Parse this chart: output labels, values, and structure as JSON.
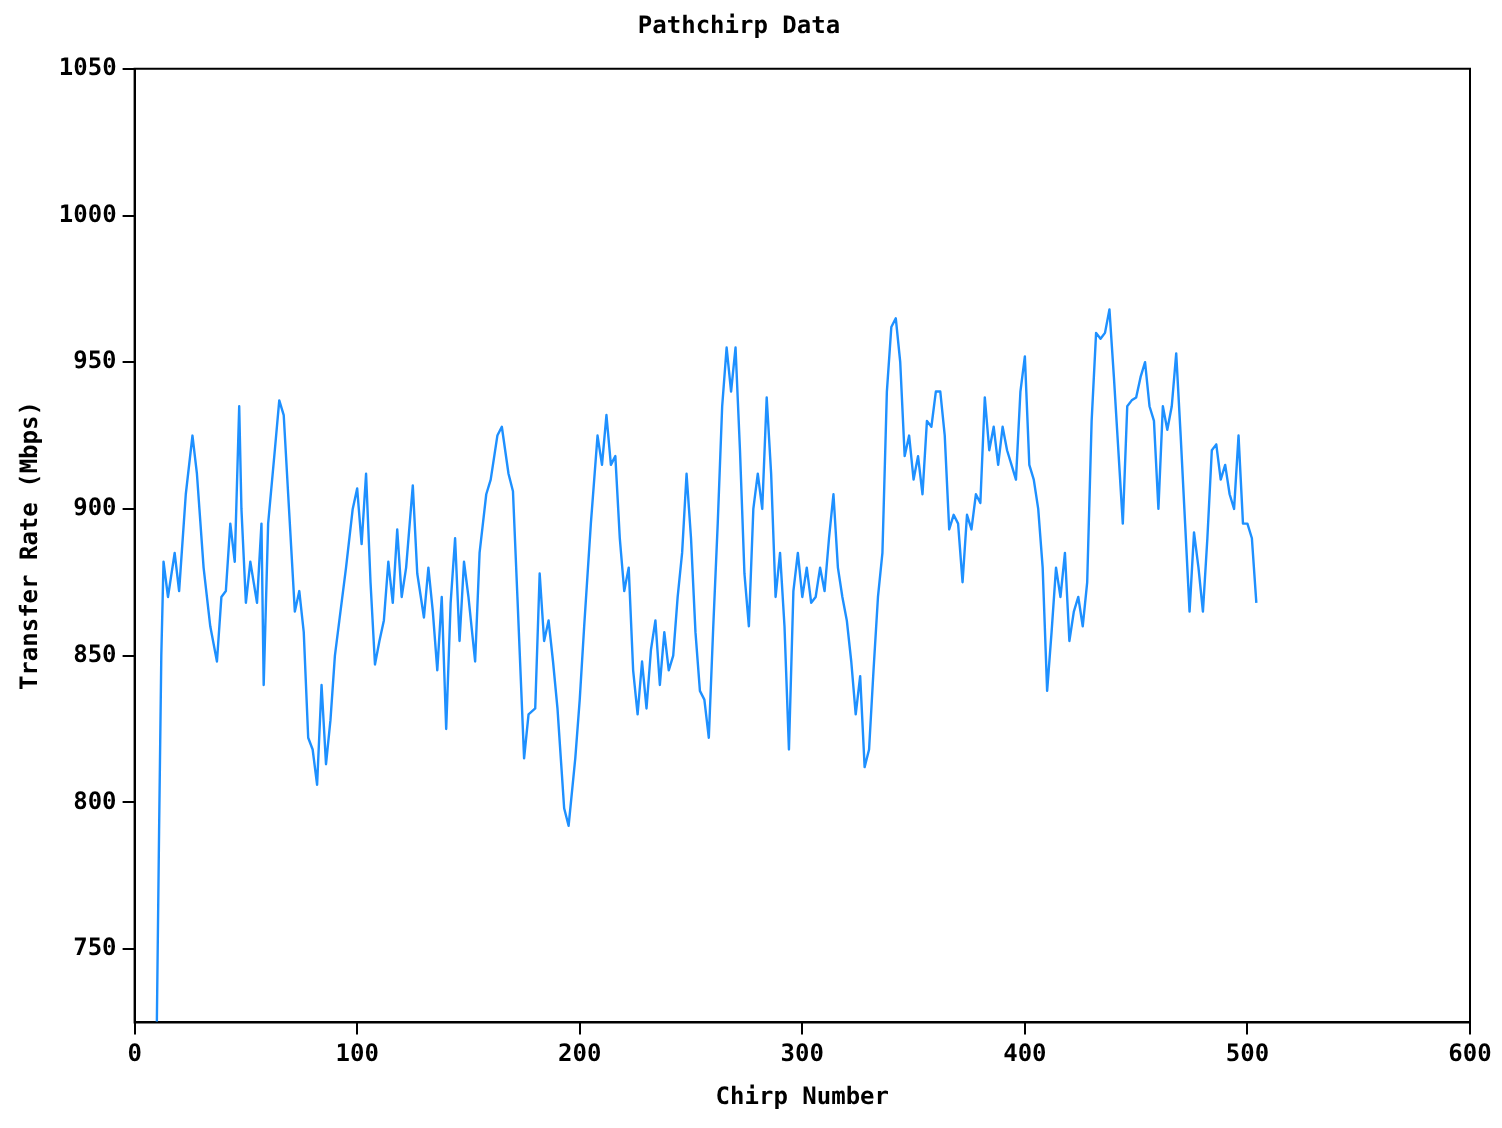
{
  "chart_data": {
    "type": "line",
    "title": "Pathchirp Data",
    "xlabel": "Chirp Number",
    "ylabel": "Transfer Rate (Mbps)",
    "xlim": [
      0,
      600
    ],
    "xticks": [
      0,
      100,
      200,
      300,
      400,
      500,
      600
    ],
    "ylim": [
      725,
      1050
    ],
    "yticks": [
      750,
      800,
      850,
      900,
      950,
      1000,
      1050
    ],
    "grid": false,
    "legend": false,
    "marker": "none",
    "line_style": "solid",
    "series": [
      {
        "color": "#1e90ff",
        "x": [
          10,
          11,
          12,
          13,
          15,
          18,
          20,
          23,
          26,
          28,
          31,
          34,
          37,
          39,
          41,
          43,
          45,
          47,
          48,
          50,
          52,
          55,
          57,
          58,
          60,
          63,
          65,
          67,
          69,
          72,
          74,
          76,
          78,
          80,
          82,
          84,
          86,
          88,
          90,
          92,
          95,
          98,
          100,
          102,
          104,
          106,
          108,
          110,
          112,
          114,
          116,
          118,
          120,
          122,
          125,
          127,
          130,
          132,
          134,
          136,
          138,
          140,
          142,
          144,
          146,
          148,
          150,
          153,
          155,
          158,
          160,
          163,
          165,
          168,
          170,
          172,
          175,
          177,
          180,
          182,
          184,
          186,
          188,
          190,
          193,
          195,
          198,
          200,
          202,
          205,
          208,
          210,
          212,
          214,
          216,
          218,
          220,
          222,
          224,
          226,
          228,
          230,
          232,
          234,
          236,
          238,
          240,
          242,
          244,
          246,
          248,
          250,
          252,
          254,
          256,
          258,
          260,
          262,
          264,
          266,
          268,
          270,
          272,
          274,
          276,
          278,
          280,
          282,
          284,
          286,
          288,
          290,
          292,
          294,
          296,
          298,
          300,
          302,
          304,
          306,
          308,
          310,
          312,
          314,
          316,
          318,
          320,
          322,
          324,
          326,
          328,
          330,
          332,
          334,
          336,
          338,
          340,
          342,
          344,
          346,
          348,
          350,
          352,
          354,
          356,
          358,
          360,
          362,
          364,
          366,
          368,
          370,
          372,
          374,
          376,
          378,
          380,
          382,
          384,
          386,
          388,
          390,
          392,
          394,
          396,
          398,
          400,
          402,
          404,
          406,
          408,
          410,
          412,
          414,
          416,
          418,
          420,
          422,
          424,
          426,
          428,
          430,
          432,
          434,
          436,
          438,
          440,
          442,
          444,
          446,
          448,
          450,
          452,
          454,
          456,
          458,
          460,
          462,
          464,
          466,
          468,
          470,
          472,
          474,
          476,
          478,
          480,
          482,
          484,
          486,
          488,
          490,
          492,
          494,
          496,
          498,
          500,
          502,
          504
        ],
        "values": [
          725,
          790,
          850,
          882,
          870,
          885,
          872,
          905,
          925,
          912,
          880,
          860,
          848,
          870,
          872,
          895,
          882,
          935,
          900,
          868,
          882,
          868,
          895,
          840,
          895,
          920,
          937,
          932,
          905,
          865,
          872,
          858,
          822,
          818,
          806,
          840,
          813,
          828,
          850,
          862,
          880,
          900,
          907,
          888,
          912,
          875,
          847,
          855,
          862,
          882,
          868,
          893,
          870,
          880,
          908,
          878,
          863,
          880,
          865,
          845,
          870,
          825,
          868,
          890,
          855,
          882,
          870,
          848,
          885,
          905,
          910,
          925,
          928,
          912,
          906,
          870,
          815,
          830,
          832,
          878,
          855,
          862,
          848,
          832,
          798,
          792,
          815,
          835,
          860,
          895,
          925,
          915,
          932,
          915,
          918,
          890,
          872,
          880,
          845,
          830,
          848,
          832,
          852,
          862,
          840,
          858,
          845,
          850,
          870,
          885,
          912,
          890,
          858,
          838,
          835,
          822,
          860,
          895,
          935,
          955,
          940,
          955,
          920,
          878,
          860,
          900,
          912,
          900,
          938,
          912,
          870,
          885,
          860,
          818,
          872,
          885,
          870,
          880,
          868,
          870,
          880,
          872,
          890,
          905,
          880,
          870,
          862,
          848,
          830,
          843,
          812,
          818,
          845,
          870,
          885,
          940,
          962,
          965,
          950,
          918,
          925,
          910,
          918,
          905,
          930,
          928,
          940,
          940,
          925,
          893,
          898,
          895,
          875,
          898,
          893,
          905,
          902,
          938,
          920,
          928,
          915,
          928,
          920,
          915,
          910,
          940,
          952,
          915,
          910,
          900,
          880,
          838,
          858,
          880,
          870,
          885,
          855,
          865,
          870,
          860,
          875,
          930,
          960,
          958,
          960,
          968,
          945,
          920,
          895,
          935,
          937,
          938,
          945,
          950,
          935,
          930,
          900,
          935,
          927,
          935,
          953,
          925,
          895,
          865,
          892,
          880,
          865,
          890,
          920,
          922,
          910,
          915,
          905,
          900,
          925,
          895,
          895,
          890,
          868
        ]
      }
    ]
  }
}
